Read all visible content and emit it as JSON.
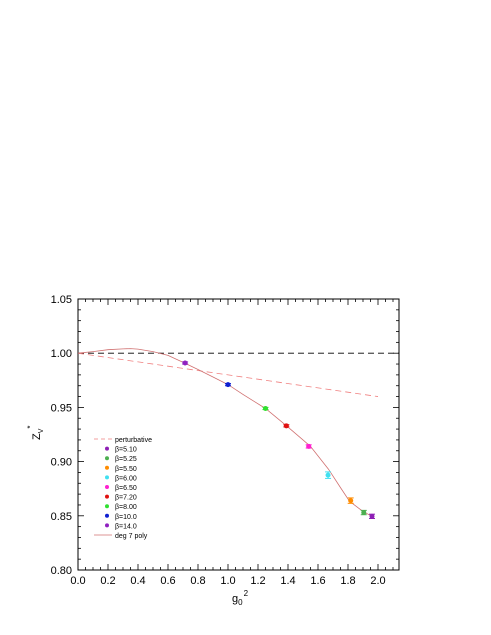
{
  "chart_data": {
    "type": "scatter",
    "title": "",
    "xlabel_base": "g",
    "xlabel_sub": "0",
    "xlabel_sup": "2",
    "ylabel_base": "Z",
    "ylabel_sub": "V",
    "ylabel_sup": "*",
    "xlim": [
      0.0,
      2.1
    ],
    "ylim": [
      0.8,
      1.05
    ],
    "xticks": [
      "0.0",
      "0.2",
      "0.4",
      "0.6",
      "0.8",
      "1.0",
      "1.2",
      "1.4",
      "1.6",
      "1.8",
      "2.0"
    ],
    "yticks": [
      "0.80",
      "0.85",
      "0.90",
      "0.95",
      "1.00",
      "1.05"
    ],
    "grid": false,
    "legend_placement": "bottom-left",
    "reference_line": {
      "y": 1.0,
      "style": "dashed",
      "color": "#000000"
    },
    "perturbative": {
      "name": "perturbative",
      "color": "#f08080",
      "style": "dashed",
      "x": [
        0.0,
        2.0
      ],
      "y": [
        1.0,
        0.96
      ]
    },
    "fit": {
      "name": "deg 7 poly",
      "color": "#d07070",
      "x": [
        0.0,
        0.1,
        0.2,
        0.3,
        0.35,
        0.4,
        0.5,
        0.6,
        0.71,
        0.8,
        0.9,
        1.0,
        1.1,
        1.25,
        1.39,
        1.5,
        1.55,
        1.67,
        1.75,
        1.81,
        1.9,
        1.96
      ],
      "y": [
        1.0,
        1.0015,
        1.0032,
        1.004,
        1.0042,
        1.0038,
        1.0015,
        0.998,
        0.991,
        0.985,
        0.978,
        0.971,
        0.962,
        0.949,
        0.933,
        0.92,
        0.914,
        0.893,
        0.876,
        0.8635,
        0.854,
        0.8495
      ]
    },
    "series": [
      {
        "name": "β=5.10",
        "color": "#8e1fb5",
        "x": 1.96,
        "y": 0.8495,
        "err": 0.002
      },
      {
        "name": "β=5.25",
        "color": "#4caf50",
        "x": 1.905,
        "y": 0.853,
        "err": 0.002
      },
      {
        "name": "β=5.50",
        "color": "#ff8c00",
        "x": 1.818,
        "y": 0.864,
        "err": 0.0025
      },
      {
        "name": "β=6.00",
        "color": "#40e0f0",
        "x": 1.667,
        "y": 0.8875,
        "err": 0.003
      },
      {
        "name": "β=6.50",
        "color": "#ff20d0",
        "x": 1.538,
        "y": 0.914,
        "err": 0.0015
      },
      {
        "name": "β=7.20",
        "color": "#e01010",
        "x": 1.389,
        "y": 0.933,
        "err": 0.001
      },
      {
        "name": "β=8.00",
        "color": "#30e030",
        "x": 1.25,
        "y": 0.949,
        "err": 0.001
      },
      {
        "name": "β=10.0",
        "color": "#1020d0",
        "x": 1.0,
        "y": 0.971,
        "err": 0.001
      },
      {
        "name": "β=14.0",
        "color": "#9020c0",
        "x": 0.714,
        "y": 0.991,
        "err": 0.001
      }
    ],
    "legend": [
      {
        "label": "perturbative",
        "kind": "dashed-line",
        "color": "#f08080"
      },
      {
        "label": "β=5.10",
        "kind": "marker",
        "color": "#8e1fb5"
      },
      {
        "label": "β=5.25",
        "kind": "marker",
        "color": "#4caf50"
      },
      {
        "label": "β=5.50",
        "kind": "marker",
        "color": "#ff8c00"
      },
      {
        "label": "β=6.00",
        "kind": "marker",
        "color": "#40e0f0"
      },
      {
        "label": "β=6.50",
        "kind": "marker",
        "color": "#ff20d0"
      },
      {
        "label": "β=7.20",
        "kind": "marker",
        "color": "#e01010"
      },
      {
        "label": "β=8.00",
        "kind": "marker",
        "color": "#30e030"
      },
      {
        "label": "β=10.0",
        "kind": "marker",
        "color": "#1020d0"
      },
      {
        "label": "β=14.0",
        "kind": "marker",
        "color": "#9020c0"
      },
      {
        "label": "deg 7 poly",
        "kind": "solid-line",
        "color": "#d07070"
      }
    ]
  }
}
